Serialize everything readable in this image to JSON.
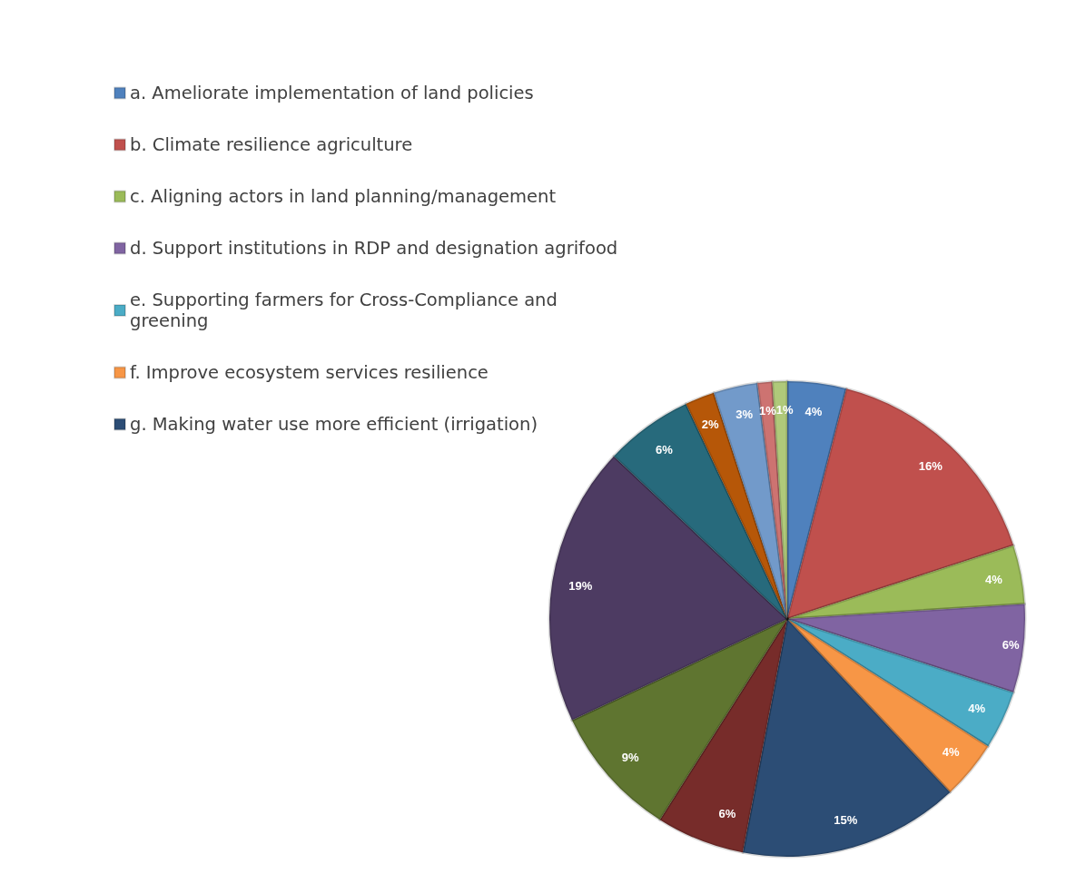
{
  "chart_data": {
    "type": "pie",
    "legend": "top left",
    "value_labels": [
      "4%",
      "16%",
      "4%",
      "6%",
      "4%",
      "4%",
      "15%",
      "6%",
      "9%",
      "19%",
      "6%",
      "2%",
      "3%",
      "1%",
      "1%"
    ],
    "categories": [
      "a. Ameliorate implementation of land policies",
      "b. Climate resilience agriculture",
      "c. Aligning actors in land planning/management",
      "d. Support institutions in RDP and designation agrifood",
      "e. Supporting farmers for Cross-Compliance and greening",
      "f. Improve ecosystem services resilience",
      "g. Making water use more efficient (irrigation)",
      null,
      null,
      null,
      null,
      null,
      null,
      null,
      null
    ],
    "values": [
      4,
      16,
      4,
      6,
      4,
      4,
      15,
      6,
      9,
      19,
      6,
      2,
      3,
      1,
      1
    ],
    "colors": [
      "#4f81bd",
      "#c0504d",
      "#9bbb59",
      "#8064a2",
      "#4bacc6",
      "#f79646",
      "#2c4d75",
      "#772c2a",
      "#5f7530",
      "#4d3b62",
      "#276a7c",
      "#b65708",
      "#729aca",
      "#cd7371",
      "#afc97a"
    ]
  }
}
